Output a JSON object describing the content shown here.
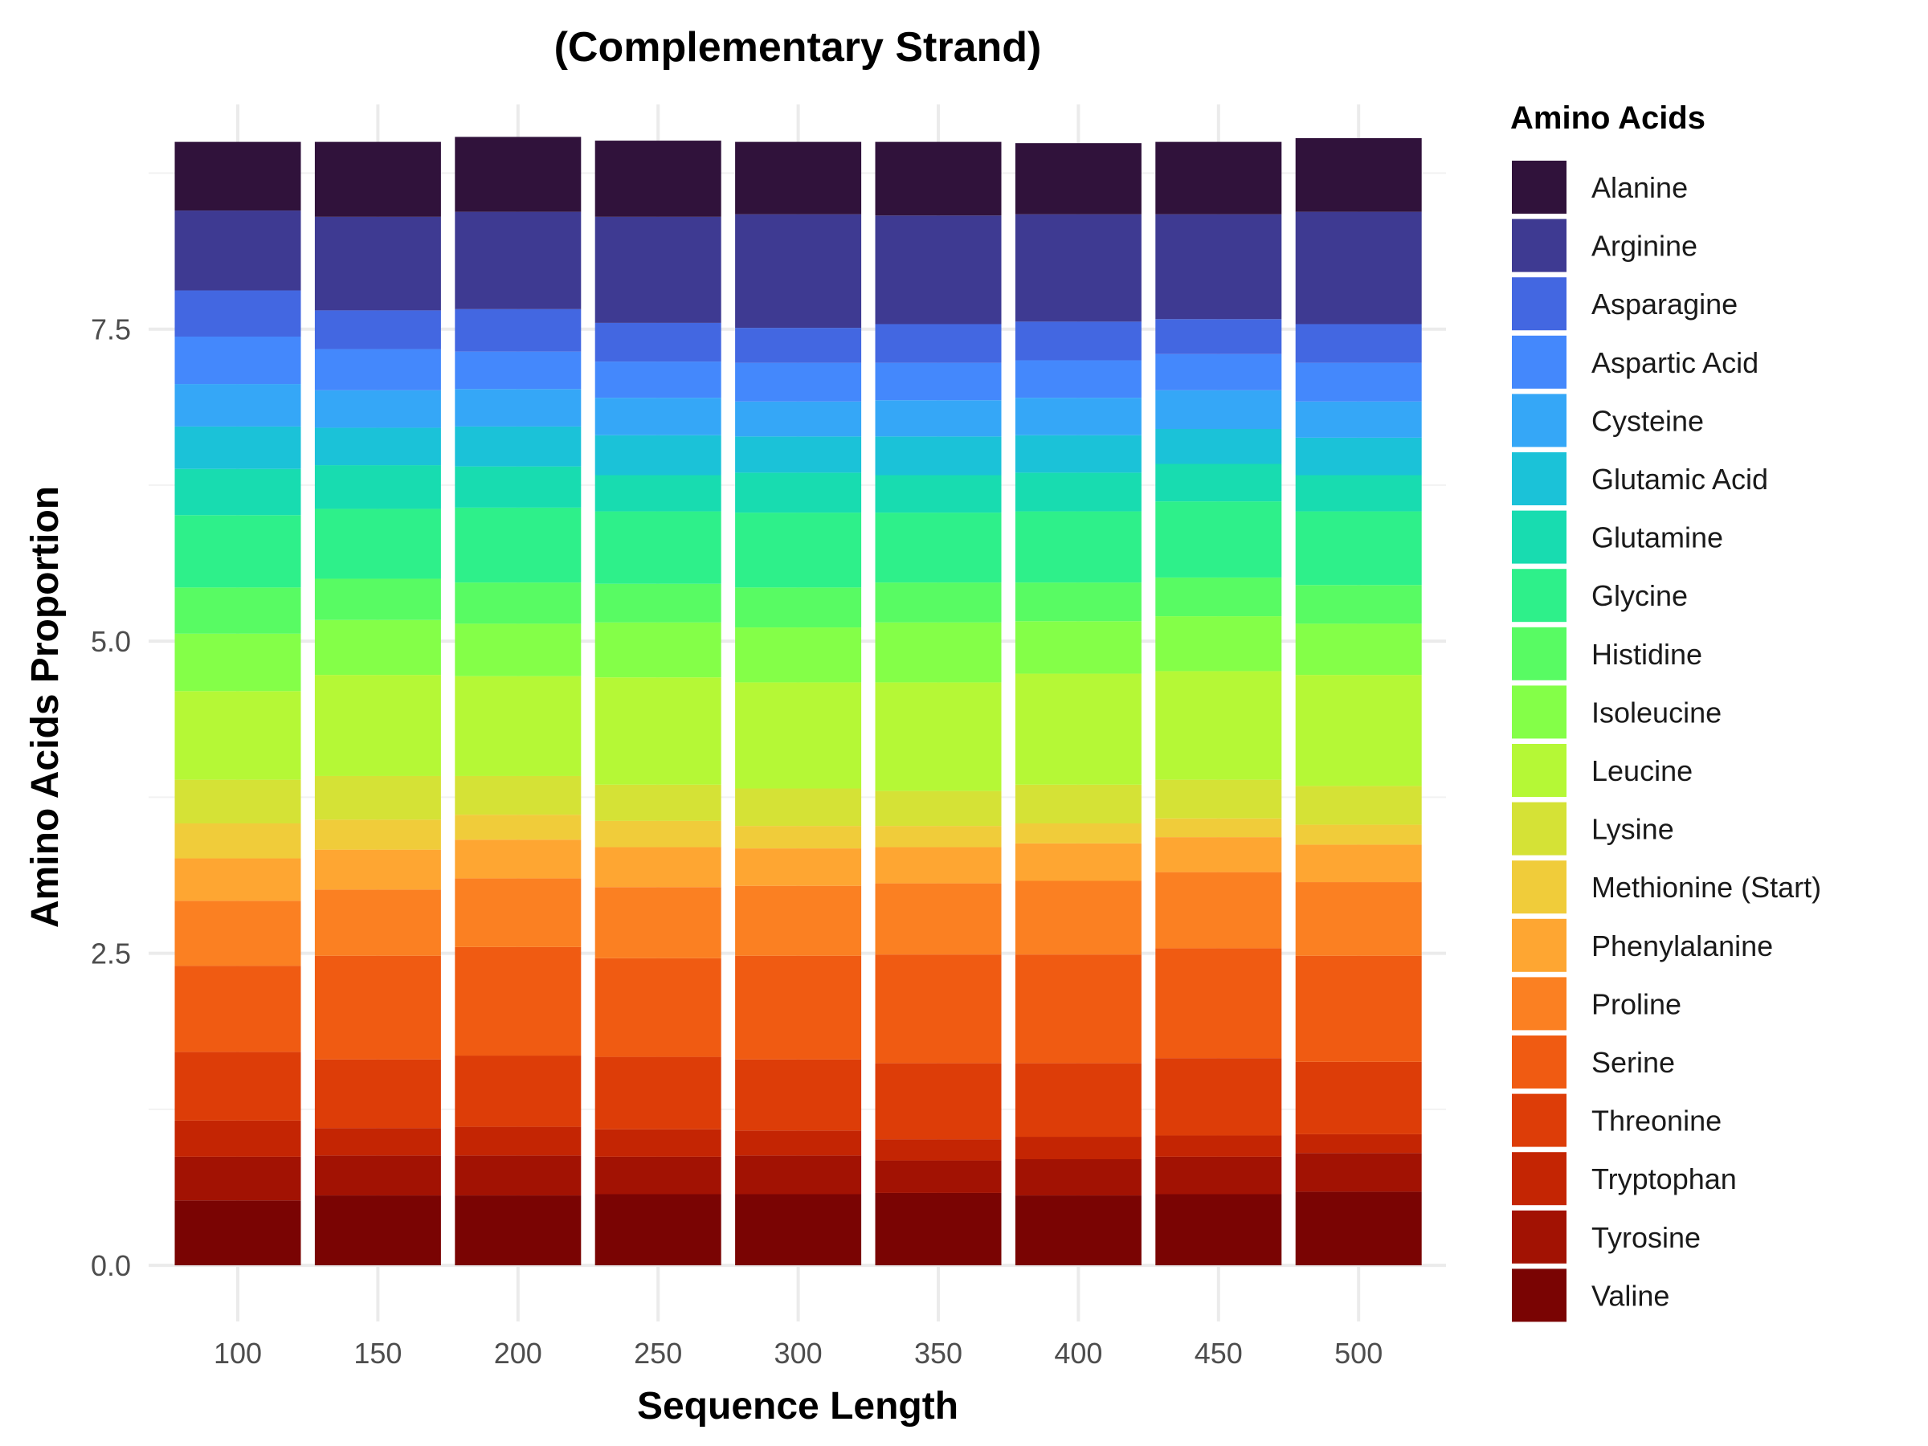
{
  "chart_data": {
    "type": "bar",
    "stacked": true,
    "title": "(Complementary Strand)",
    "xlabel": "Sequence Length",
    "ylabel": "Amino Acids Proportion",
    "legend_title": "Amino Acids",
    "legend_position": "right",
    "grid": true,
    "x_tick_labels": [
      "100",
      "150",
      "200",
      "250",
      "300",
      "350",
      "400",
      "450",
      "500"
    ],
    "y_ticks": [
      0.0,
      2.5,
      5.0,
      7.5
    ],
    "y_tick_labels": [
      "0.0",
      "2.5",
      "5.0",
      "7.5"
    ],
    "ylim": [
      -0.45,
      9.3
    ],
    "categories": [
      100,
      150,
      200,
      250,
      300,
      350,
      400,
      450,
      500
    ],
    "series": [
      {
        "name": "Valine",
        "color": "#7a0403",
        "values": [
          0.52,
          0.56,
          0.56,
          0.57,
          0.57,
          0.58,
          0.56,
          0.57,
          0.59
        ]
      },
      {
        "name": "Tyrosine",
        "color": "#a21203",
        "values": [
          0.35,
          0.32,
          0.32,
          0.3,
          0.31,
          0.26,
          0.29,
          0.3,
          0.31
        ]
      },
      {
        "name": "Tryptophan",
        "color": "#c42503",
        "values": [
          0.29,
          0.22,
          0.23,
          0.22,
          0.2,
          0.17,
          0.18,
          0.17,
          0.15
        ]
      },
      {
        "name": "Threonine",
        "color": "#dd3d08",
        "values": [
          0.55,
          0.55,
          0.57,
          0.58,
          0.57,
          0.61,
          0.59,
          0.62,
          0.58
        ]
      },
      {
        "name": "Serine",
        "color": "#f05b12",
        "values": [
          0.69,
          0.83,
          0.87,
          0.79,
          0.83,
          0.87,
          0.87,
          0.88,
          0.85
        ]
      },
      {
        "name": "Proline",
        "color": "#fb8022",
        "values": [
          0.52,
          0.53,
          0.55,
          0.57,
          0.56,
          0.57,
          0.59,
          0.61,
          0.59
        ]
      },
      {
        "name": "Phenylalanine",
        "color": "#fea632",
        "values": [
          0.34,
          0.32,
          0.31,
          0.32,
          0.3,
          0.29,
          0.3,
          0.28,
          0.3
        ]
      },
      {
        "name": "Methionine (Start)",
        "color": "#f0cc3a",
        "values": [
          0.28,
          0.24,
          0.2,
          0.21,
          0.18,
          0.17,
          0.16,
          0.15,
          0.16
        ]
      },
      {
        "name": "Lysine",
        "color": "#d5e236",
        "values": [
          0.35,
          0.35,
          0.31,
          0.29,
          0.3,
          0.28,
          0.31,
          0.31,
          0.31
        ]
      },
      {
        "name": "Leucine",
        "color": "#b5f836",
        "values": [
          0.71,
          0.81,
          0.8,
          0.86,
          0.85,
          0.87,
          0.89,
          0.87,
          0.89
        ]
      },
      {
        "name": "Isoleucine",
        "color": "#84ff48",
        "values": [
          0.46,
          0.44,
          0.42,
          0.44,
          0.44,
          0.48,
          0.42,
          0.44,
          0.41
        ]
      },
      {
        "name": "Histidine",
        "color": "#58fb63",
        "values": [
          0.37,
          0.33,
          0.33,
          0.31,
          0.32,
          0.32,
          0.31,
          0.31,
          0.31
        ]
      },
      {
        "name": "Glycine",
        "color": "#2ef08a",
        "values": [
          0.58,
          0.56,
          0.6,
          0.58,
          0.6,
          0.56,
          0.57,
          0.61,
          0.59
        ]
      },
      {
        "name": "Glutamine",
        "color": "#18dcb0",
        "values": [
          0.37,
          0.35,
          0.33,
          0.29,
          0.32,
          0.3,
          0.31,
          0.3,
          0.29
        ]
      },
      {
        "name": "Glutamic Acid",
        "color": "#1bc2d8",
        "values": [
          0.34,
          0.3,
          0.32,
          0.32,
          0.29,
          0.31,
          0.3,
          0.28,
          0.3
        ]
      },
      {
        "name": "Cysteine",
        "color": "#35a7f7",
        "values": [
          0.34,
          0.3,
          0.3,
          0.3,
          0.28,
          0.29,
          0.3,
          0.31,
          0.29
        ]
      },
      {
        "name": "Aspartic Acid",
        "color": "#4488fc",
        "values": [
          0.38,
          0.33,
          0.3,
          0.29,
          0.31,
          0.3,
          0.3,
          0.29,
          0.31
        ]
      },
      {
        "name": "Asparagine",
        "color": "#4367e1",
        "values": [
          0.37,
          0.31,
          0.34,
          0.31,
          0.28,
          0.31,
          0.31,
          0.28,
          0.31
        ]
      },
      {
        "name": "Arginine",
        "color": "#3e3a92",
        "values": [
          0.64,
          0.75,
          0.78,
          0.85,
          0.91,
          0.87,
          0.86,
          0.84,
          0.9
        ]
      },
      {
        "name": "Alanine",
        "color": "#30123b",
        "values": [
          0.55,
          0.6,
          0.6,
          0.61,
          0.58,
          0.59,
          0.57,
          0.58,
          0.59
        ]
      }
    ]
  }
}
